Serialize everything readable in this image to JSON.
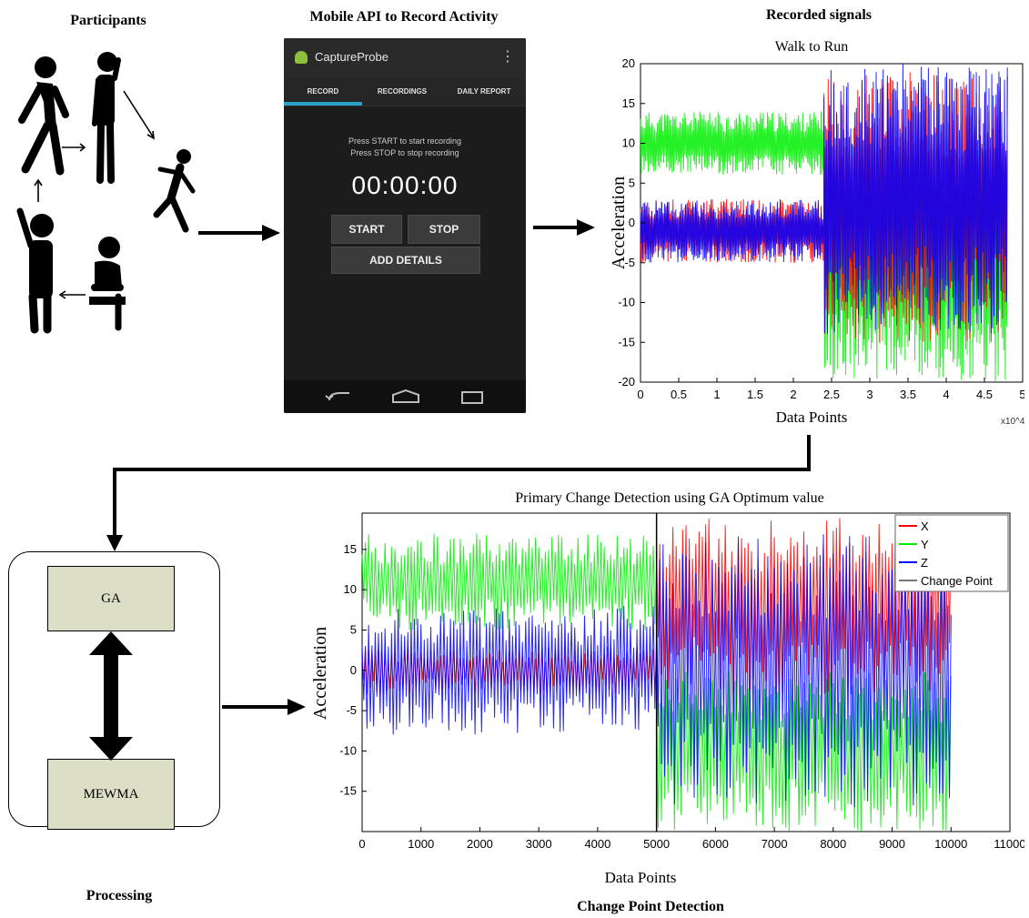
{
  "sections": {
    "participants_title": "Participants",
    "mobile_title": "Mobile API to Record Activity",
    "recorded_title": "Recorded signals",
    "processing_title": "Processing",
    "change_title": "Change Point Detection"
  },
  "phone": {
    "app_name": "CaptureProbe",
    "tabs": [
      "RECORD",
      "RECORDINGS",
      "DAILY REPORT"
    ],
    "hint_line1": "Press START to start recording",
    "hint_line2": "Press STOP to stop recording",
    "timer": "00:00:00",
    "start_label": "START",
    "stop_label": "STOP",
    "details_label": "ADD DETAILS"
  },
  "processing": {
    "ga_label": "GA",
    "mewma_label": "MEWMA"
  },
  "colors": {
    "x_series": "#ff0000",
    "y_series": "#00ee00",
    "z_series": "#0000ff",
    "change_point": "#000000",
    "proc_box_fill": "#dcdfc6",
    "phone_accent": "#2aa3c8"
  },
  "chart_data": [
    {
      "type": "line",
      "title": "Walk to Run",
      "xlabel": "Data Points",
      "ylabel": "Acceleration",
      "x_multiplier": "x10^4",
      "xlim": [
        0,
        5
      ],
      "ylim": [
        -20,
        20
      ],
      "xticks": [
        "0",
        "0.5",
        "1",
        "1.5",
        "2",
        "2.5",
        "3",
        "3.5",
        "4",
        "4.5",
        "5"
      ],
      "yticks": [
        "20",
        "15",
        "10",
        "5",
        "0",
        "-5",
        "-10",
        "-15",
        "-20"
      ],
      "grid": false,
      "series": [
        {
          "key": "x",
          "segments": [
            {
              "from": 0,
              "to": 2.4,
              "center": -1,
              "amp": 4
            },
            {
              "from": 2.4,
              "to": 4.8,
              "center": 2,
              "amp": 17
            }
          ]
        },
        {
          "key": "y",
          "segments": [
            {
              "from": 0,
              "to": 2.4,
              "center": 10,
              "amp": 4
            },
            {
              "from": 2.4,
              "to": 4.8,
              "center": -5,
              "amp": 15
            }
          ]
        },
        {
          "key": "z",
          "segments": [
            {
              "from": 0,
              "to": 2.4,
              "center": -1,
              "amp": 4
            },
            {
              "from": 2.4,
              "to": 4.8,
              "center": 3,
              "amp": 17
            }
          ]
        }
      ]
    },
    {
      "type": "line",
      "title": "Primary Change Detection using GA Optimum value",
      "xlabel": "Data Points",
      "ylabel": "Acceleration",
      "xlim": [
        0,
        11000
      ],
      "ylim": [
        -20,
        19.5
      ],
      "xticks": [
        "0",
        "1000",
        "2000",
        "3000",
        "4000",
        "5000",
        "6000",
        "7000",
        "8000",
        "9000",
        "10000",
        "11000"
      ],
      "yticks": [
        "15",
        "10",
        "5",
        "0",
        "-5",
        "-10",
        "-15"
      ],
      "grid": false,
      "legend": "top-right",
      "change_point": 5000,
      "series": [
        {
          "name": "X",
          "key": "x",
          "segments": [
            {
              "from": 0,
              "to": 5000,
              "center": 0,
              "amp": 3
            },
            {
              "from": 5000,
              "to": 10000,
              "center": 8,
              "amp": 11
            }
          ]
        },
        {
          "name": "Y",
          "key": "y",
          "segments": [
            {
              "from": 0,
              "to": 5000,
              "center": 11,
              "amp": 6
            },
            {
              "from": 5000,
              "to": 10000,
              "center": -10,
              "amp": 10
            }
          ]
        },
        {
          "name": "Z",
          "key": "z",
          "segments": [
            {
              "from": 0,
              "to": 5000,
              "center": 0,
              "amp": 8
            },
            {
              "from": 5000,
              "to": 10000,
              "center": 0,
              "amp": 17
            }
          ]
        },
        {
          "name": "Change Point",
          "key": "cp"
        }
      ]
    }
  ]
}
